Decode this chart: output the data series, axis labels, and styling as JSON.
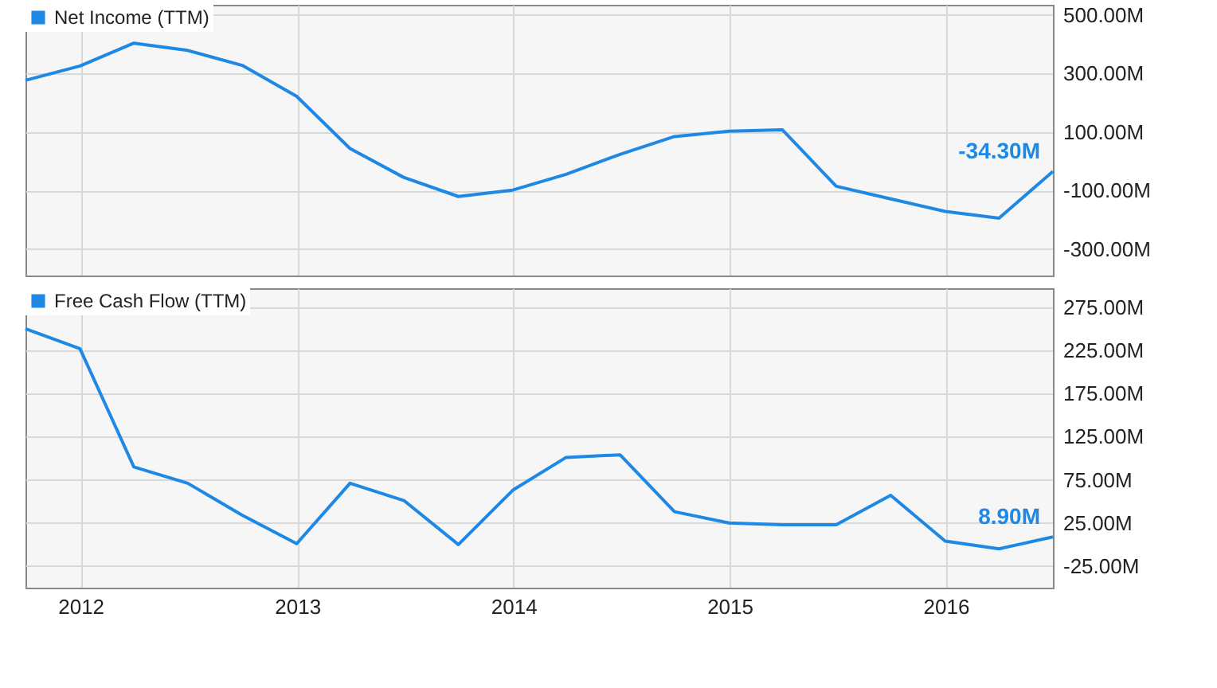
{
  "chart_data": [
    {
      "type": "line",
      "x": [
        "2011-09-30",
        "2011-12-31",
        "2012-03-31",
        "2012-06-30",
        "2012-09-30",
        "2012-12-31",
        "2013-03-31",
        "2013-06-30",
        "2013-09-30",
        "2013-12-31",
        "2014-03-31",
        "2014-06-30",
        "2014-09-30",
        "2014-12-31",
        "2015-03-31",
        "2015-06-30",
        "2015-09-30",
        "2015-12-31",
        "2016-03-31",
        "2016-06-30"
      ],
      "series": [
        {
          "name": "Net Income (TTM)",
          "color": "#1e88e5",
          "values": [
            277,
            326,
            404,
            379,
            328,
            222,
            44,
            -55,
            -120,
            -98,
            -44,
            24,
            85,
            103,
            108,
            -85,
            -128,
            -171,
            -194,
            -34.3
          ],
          "value_labels": [
            null,
            null,
            null,
            null,
            null,
            null,
            null,
            null,
            null,
            null,
            null,
            null,
            null,
            null,
            null,
            null,
            null,
            null,
            null,
            "-34.30M"
          ]
        }
      ],
      "xlim": [
        "2011-09-30",
        "2016-06-30"
      ],
      "xticks": [
        "2012",
        "2013",
        "2014",
        "2015",
        "2016"
      ],
      "ylim": [
        -390,
        535
      ],
      "yticks": [
        {
          "value": 500,
          "label": "500.00M"
        },
        {
          "value": 300,
          "label": "300.00M"
        },
        {
          "value": 100,
          "label": "100.00M"
        },
        {
          "value": -100,
          "label": "-100.00M"
        },
        {
          "value": -300,
          "label": "-300.00M"
        }
      ],
      "tick_labels": "y",
      "grid": true,
      "legend": "top left"
    },
    {
      "type": "line",
      "x": [
        "2011-09-30",
        "2011-12-31",
        "2012-03-31",
        "2012-06-30",
        "2012-09-30",
        "2012-12-31",
        "2013-03-31",
        "2013-06-30",
        "2013-09-30",
        "2013-12-31",
        "2014-03-31",
        "2014-06-30",
        "2014-09-30",
        "2014-12-31",
        "2015-03-31",
        "2015-06-30",
        "2015-09-30",
        "2015-12-31",
        "2016-03-31",
        "2016-06-30"
      ],
      "series": [
        {
          "name": "Free Cash Flow (TTM)",
          "color": "#1e88e5",
          "values": [
            250,
            227,
            90,
            71,
            34,
            1,
            71,
            51,
            0,
            63,
            101,
            104,
            38,
            25,
            23,
            23,
            57,
            4,
            -5,
            8.9
          ],
          "value_labels": [
            null,
            null,
            null,
            null,
            null,
            null,
            null,
            null,
            null,
            null,
            null,
            null,
            null,
            null,
            null,
            null,
            null,
            null,
            null,
            "8.90M"
          ]
        }
      ],
      "xlim": [
        "2011-09-30",
        "2016-06-30"
      ],
      "xticks": [
        "2012",
        "2013",
        "2014",
        "2015",
        "2016"
      ],
      "ylim": [
        -50,
        297
      ],
      "yticks": [
        {
          "value": 275,
          "label": "275.00M"
        },
        {
          "value": 225,
          "label": "225.00M"
        },
        {
          "value": 175,
          "label": "175.00M"
        },
        {
          "value": 125,
          "label": "125.00M"
        },
        {
          "value": 75,
          "label": "75.00M"
        },
        {
          "value": 25,
          "label": "25.00M"
        },
        {
          "value": -25,
          "label": "-25.00M"
        }
      ],
      "grid": true,
      "legend": "top left"
    }
  ]
}
